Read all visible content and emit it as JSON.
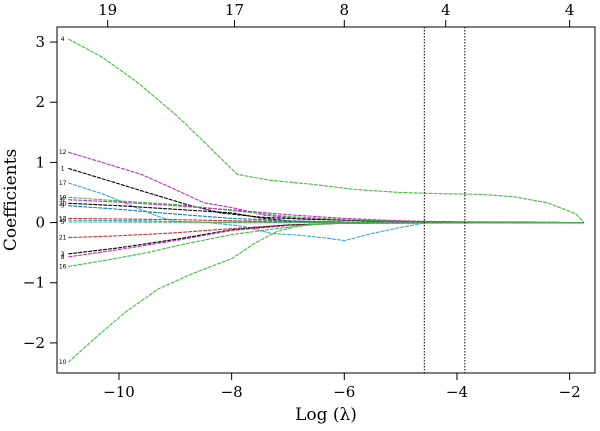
{
  "chart_data": {
    "type": "line",
    "title": "",
    "xlabel": "Log (λ)",
    "ylabel": "Coefficients",
    "xlim": [
      -11.1,
      -1.55
    ],
    "ylim": [
      -2.5,
      3.25
    ],
    "x_ticks": [
      -10,
      -8,
      -6,
      -4,
      -2
    ],
    "y_ticks": [
      -2,
      -1,
      0,
      1,
      2,
      3
    ],
    "top_ticks": [
      {
        "x": -10.2,
        "label": "19"
      },
      {
        "x": -7.95,
        "label": "17"
      },
      {
        "x": -6.0,
        "label": "8"
      },
      {
        "x": -4.2,
        "label": "4"
      },
      {
        "x": -2.0,
        "label": "4"
      }
    ],
    "vlines": [
      -4.58,
      -3.86
    ],
    "grid": false,
    "series": [
      {
        "label": "4",
        "color": "#44bb44",
        "points": [
          [
            -10.9,
            3.05
          ],
          [
            -10.3,
            2.75
          ],
          [
            -9.7,
            2.35
          ],
          [
            -9.0,
            1.8
          ],
          [
            -8.5,
            1.35
          ],
          [
            -7.9,
            0.8
          ],
          [
            -7.3,
            0.7
          ],
          [
            -6.6,
            0.64
          ],
          [
            -5.8,
            0.55
          ],
          [
            -5.0,
            0.5
          ],
          [
            -4.3,
            0.48
          ],
          [
            -3.6,
            0.47
          ],
          [
            -3.0,
            0.43
          ],
          [
            -2.4,
            0.33
          ],
          [
            -1.9,
            0.15
          ],
          [
            -1.75,
            0.01
          ]
        ]
      },
      {
        "label": "12",
        "color": "#bb33bb",
        "points": [
          [
            -10.9,
            1.17
          ],
          [
            -10.3,
            1.0
          ],
          [
            -9.6,
            0.8
          ],
          [
            -9.0,
            0.55
          ],
          [
            -8.5,
            0.33
          ],
          [
            -8.0,
            0.25
          ],
          [
            -7.4,
            0.12
          ],
          [
            -6.8,
            0.07
          ],
          [
            -6.0,
            0.04
          ],
          [
            -5.0,
            0.02
          ],
          [
            -4.3,
            0.01
          ],
          [
            -1.75,
            0.0
          ]
        ]
      },
      {
        "label": "1",
        "color": "#000000",
        "points": [
          [
            -10.9,
            0.9
          ],
          [
            -10.2,
            0.7
          ],
          [
            -9.5,
            0.5
          ],
          [
            -8.8,
            0.3
          ],
          [
            -8.2,
            0.16
          ],
          [
            -7.5,
            0.09
          ],
          [
            -6.8,
            0.06
          ],
          [
            -6.0,
            0.04
          ],
          [
            -5.0,
            0.02
          ],
          [
            -4.3,
            0.01
          ],
          [
            -1.75,
            0.0
          ]
        ]
      },
      {
        "label": "17",
        "color": "#33a9dd",
        "points": [
          [
            -10.9,
            0.66
          ],
          [
            -10.3,
            0.48
          ],
          [
            -9.7,
            0.25
          ],
          [
            -9.3,
            0.1
          ],
          [
            -9.0,
            0.02
          ],
          [
            -8.5,
            0.01
          ],
          [
            -1.75,
            0.0
          ]
        ]
      },
      {
        "label": "19",
        "color": "#44bb44",
        "points": [
          [
            -10.9,
            0.42
          ],
          [
            -10.0,
            0.36
          ],
          [
            -9.0,
            0.3
          ],
          [
            -8.0,
            0.2
          ],
          [
            -7.0,
            0.1
          ],
          [
            -6.0,
            0.05
          ],
          [
            -5.0,
            0.02
          ],
          [
            -1.75,
            0.0
          ]
        ]
      },
      {
        "label": "6",
        "color": "#bb33bb",
        "points": [
          [
            -10.9,
            0.38
          ],
          [
            -10.0,
            0.34
          ],
          [
            -9.0,
            0.28
          ],
          [
            -8.0,
            0.21
          ],
          [
            -7.0,
            0.13
          ],
          [
            -6.0,
            0.07
          ],
          [
            -5.0,
            0.03
          ],
          [
            -4.0,
            0.01
          ],
          [
            -1.75,
            0.0
          ]
        ]
      },
      {
        "label": "20",
        "color": "#000000",
        "points": [
          [
            -10.9,
            0.32
          ],
          [
            -10.0,
            0.28
          ],
          [
            -9.0,
            0.22
          ],
          [
            -8.0,
            0.16
          ],
          [
            -7.5,
            0.08
          ],
          [
            -7.0,
            0.03
          ],
          [
            -6.5,
            0.01
          ],
          [
            -1.75,
            0.0
          ]
        ]
      },
      {
        "label": "9",
        "color": "#1177bb",
        "points": [
          [
            -10.9,
            0.28
          ],
          [
            -10.0,
            0.22
          ],
          [
            -9.0,
            0.14
          ],
          [
            -8.0,
            0.07
          ],
          [
            -7.0,
            0.03
          ],
          [
            -6.0,
            0.01
          ],
          [
            -1.75,
            0.0
          ]
        ]
      },
      {
        "label": "13",
        "color": "#cc3333",
        "points": [
          [
            -10.9,
            0.07
          ],
          [
            -10.0,
            0.06
          ],
          [
            -9.0,
            0.05
          ],
          [
            -8.0,
            0.03
          ],
          [
            -7.0,
            0.02
          ],
          [
            -6.0,
            0.01
          ],
          [
            -1.75,
            0.0
          ]
        ]
      },
      {
        "label": "15",
        "color": "#33a9dd",
        "points": [
          [
            -10.9,
            0.04
          ],
          [
            -9.5,
            0.03
          ],
          [
            -8.4,
            0.0
          ],
          [
            -7.8,
            -0.06
          ],
          [
            -7.3,
            -0.18
          ],
          [
            -6.8,
            -0.21
          ],
          [
            -6.3,
            -0.26
          ],
          [
            -6.0,
            -0.3
          ],
          [
            -5.5,
            -0.18
          ],
          [
            -5.0,
            -0.08
          ],
          [
            -4.6,
            -0.01
          ],
          [
            -1.75,
            0.0
          ]
        ]
      },
      {
        "label": "5",
        "color": "#44bb44",
        "points": [
          [
            -10.9,
            0.01
          ],
          [
            -10.0,
            0.01
          ],
          [
            -8.0,
            0.0
          ],
          [
            -1.75,
            0.0
          ]
        ]
      },
      {
        "label": "21",
        "color": "#cc3333",
        "points": [
          [
            -10.9,
            -0.25
          ],
          [
            -10.0,
            -0.22
          ],
          [
            -9.0,
            -0.17
          ],
          [
            -8.0,
            -0.1
          ],
          [
            -7.0,
            -0.04
          ],
          [
            -6.0,
            -0.01
          ],
          [
            -1.75,
            0.0
          ]
        ]
      },
      {
        "label": "3",
        "color": "#000000",
        "points": [
          [
            -10.9,
            -0.52
          ],
          [
            -10.0,
            -0.42
          ],
          [
            -9.0,
            -0.28
          ],
          [
            -8.0,
            -0.12
          ],
          [
            -7.0,
            -0.04
          ],
          [
            -6.0,
            -0.01
          ],
          [
            -1.75,
            0.0
          ]
        ]
      },
      {
        "label": "8",
        "color": "#bb33bb",
        "points": [
          [
            -10.9,
            -0.57
          ],
          [
            -10.0,
            -0.45
          ],
          [
            -9.0,
            -0.3
          ],
          [
            -8.0,
            -0.13
          ],
          [
            -7.0,
            -0.05
          ],
          [
            -6.0,
            -0.01
          ],
          [
            -1.75,
            0.0
          ]
        ]
      },
      {
        "label": "16",
        "color": "#44bb44",
        "points": [
          [
            -10.9,
            -0.73
          ],
          [
            -10.2,
            -0.62
          ],
          [
            -9.5,
            -0.5
          ],
          [
            -8.8,
            -0.35
          ],
          [
            -8.0,
            -0.2
          ],
          [
            -7.2,
            -0.1
          ],
          [
            -6.5,
            -0.03
          ],
          [
            -6.0,
            -0.01
          ],
          [
            -1.75,
            0.0
          ]
        ]
      },
      {
        "label": "10",
        "color": "#44bb44",
        "points": [
          [
            -10.9,
            -2.32
          ],
          [
            -10.4,
            -1.9
          ],
          [
            -9.9,
            -1.5
          ],
          [
            -9.3,
            -1.1
          ],
          [
            -8.7,
            -0.85
          ],
          [
            -8.0,
            -0.6
          ],
          [
            -7.6,
            -0.35
          ],
          [
            -7.2,
            -0.15
          ],
          [
            -6.8,
            -0.05
          ],
          [
            -6.3,
            -0.01
          ],
          [
            -1.75,
            0.0
          ]
        ]
      }
    ]
  }
}
